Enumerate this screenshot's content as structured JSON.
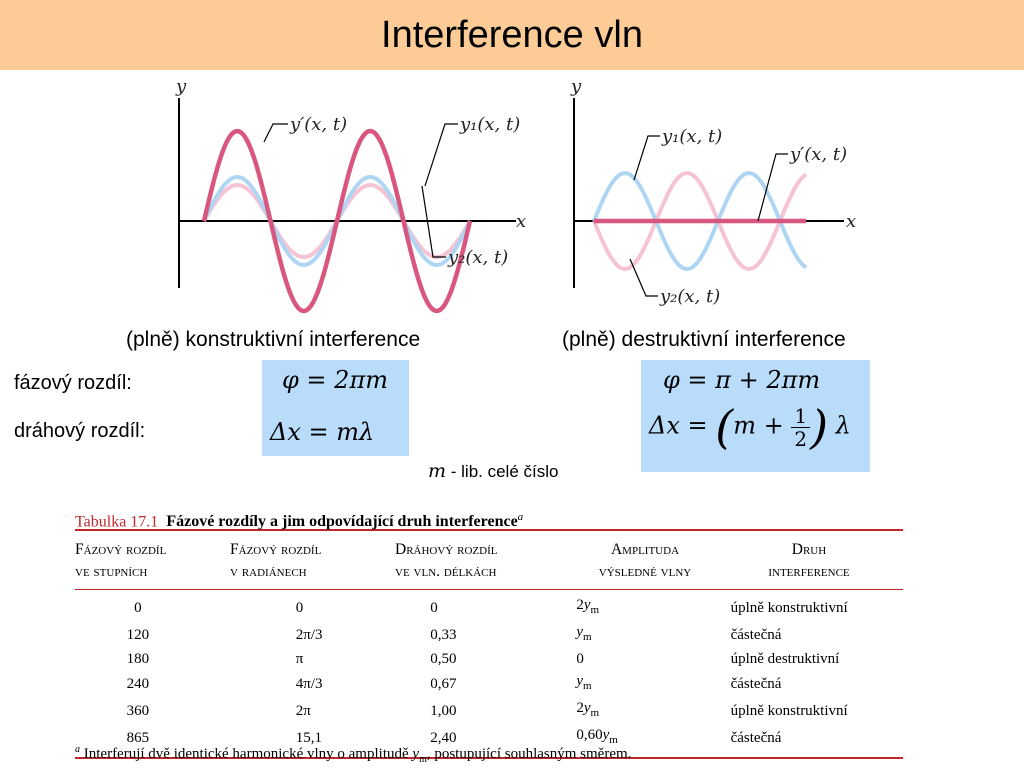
{
  "title": "Interference vln",
  "left_graph": {
    "axis_y": "y",
    "axis_x": "x",
    "label_resultant": "y′(x, t)",
    "label_y1": "y₁(x, t)",
    "label_y2": "y₂(x, t)"
  },
  "right_graph": {
    "axis_y": "y",
    "axis_x": "x",
    "label_resultant": "y′(x, t)",
    "label_y1": "y₁(x, t)",
    "label_y2": "y₂(x, t)"
  },
  "captions": {
    "constructive": "(plně) konstruktivní interference",
    "destructive": "(plně) destruktivní interference"
  },
  "labels": {
    "phase_difference": "fázový rozdíl:",
    "path_difference": "dráhový rozdíl:"
  },
  "formulas": {
    "constructive_phase": "φ = 2πm",
    "constructive_path": "Δx = mλ",
    "destructive_phase": "φ = π + 2πm",
    "destructive_path_lhs": "Δx =",
    "destructive_path_m": "m +",
    "destructive_path_num": "1",
    "destructive_path_den": "2",
    "destructive_path_lambda": "λ"
  },
  "note": {
    "var": "m",
    "text": "- lib. celé číslo"
  },
  "table": {
    "number": "Tabulka 17.1",
    "title": "Fázové rozdíly a jim odpovídající druh interference",
    "title_mark": "a",
    "headers": [
      [
        "Fázový rozdíl",
        "ve stupních"
      ],
      [
        "Fázový rozdíl",
        "v radiánech"
      ],
      [
        "Dráhový rozdíl",
        "ve vln. délkách"
      ],
      [
        "Amplituda",
        "výsledné vlny"
      ],
      [
        "Druh",
        "interference"
      ]
    ],
    "rows": [
      [
        "0",
        "0",
        "0",
        "2y_m",
        "úplně konstruktivní"
      ],
      [
        "120",
        "2π/3",
        "0,33",
        "y_m",
        "částečná"
      ],
      [
        "180",
        "π",
        "0,50",
        "0",
        "úplně destruktivní"
      ],
      [
        "240",
        "4π/3",
        "0,67",
        "y_m",
        "částečná"
      ],
      [
        "360",
        "2π",
        "1,00",
        "2y_m",
        "úplně konstruktivní"
      ],
      [
        "865",
        "15,1",
        "2,40",
        "0,60y_m",
        "částečná"
      ]
    ],
    "footnote_mark": "a",
    "footnote": "Interferují dvě identické harmonické vlny o amplitudě y_m, postupující souhlasným směrem."
  },
  "colors": {
    "title_bg": "#fccb96",
    "formula_bg": "#b8dcfa",
    "table_red": "#c0272d",
    "wave_resultant": "#d9577f",
    "wave_y1": "#aed6f3",
    "wave_y2": "#f6c3d4"
  }
}
